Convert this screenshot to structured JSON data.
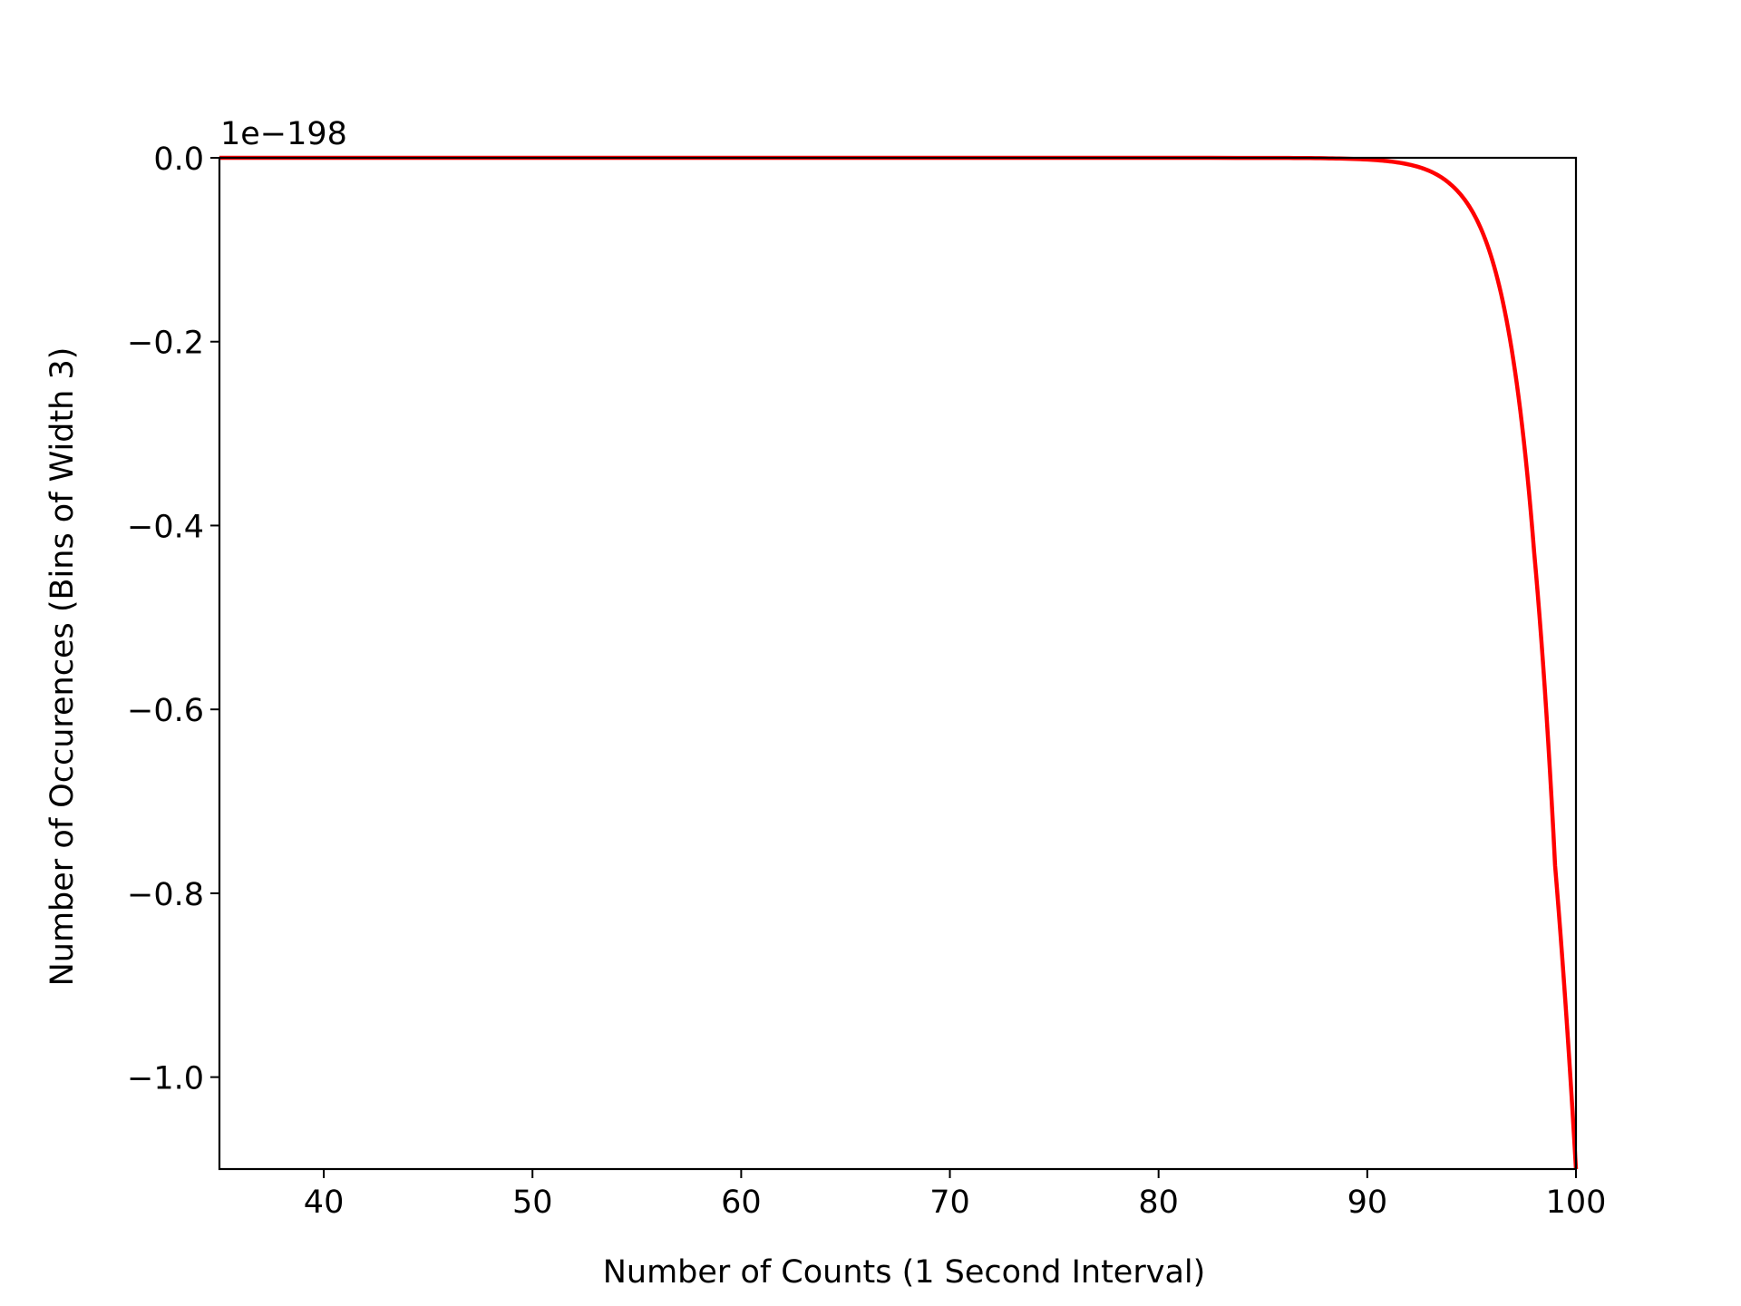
{
  "chart_data": {
    "type": "line",
    "title": "",
    "xlabel": "Number of Counts (1 Second Interval)",
    "ylabel": "Number of Occurences (Bins of Width 3)",
    "offset_label": "1e−198",
    "xlim": [
      35,
      100
    ],
    "ylim": [
      -1.1,
      0.0
    ],
    "x_ticks": [
      40,
      50,
      60,
      70,
      80,
      90,
      100
    ],
    "x_tick_labels": [
      "40",
      "50",
      "60",
      "70",
      "80",
      "90",
      "100"
    ],
    "y_ticks": [
      0.0,
      -0.2,
      -0.4,
      -0.6,
      -0.8,
      -1.0
    ],
    "y_tick_labels": [
      "0.0",
      "−0.2",
      "−0.4",
      "−0.6",
      "−0.8",
      "−1.0"
    ],
    "grid": false,
    "series": [
      {
        "color": "#ff0000",
        "x": [
          35,
          50,
          70,
          85,
          88,
          90,
          91,
          92,
          93,
          94,
          95,
          96,
          97,
          98,
          99,
          100
        ],
        "y": [
          0,
          0,
          0,
          -7e-05,
          -0.0005,
          -0.0019,
          -0.0037,
          -0.0073,
          -0.0145,
          -0.029,
          -0.057,
          -0.112,
          -0.22,
          -0.43,
          -0.77,
          -1.1
        ]
      }
    ]
  }
}
